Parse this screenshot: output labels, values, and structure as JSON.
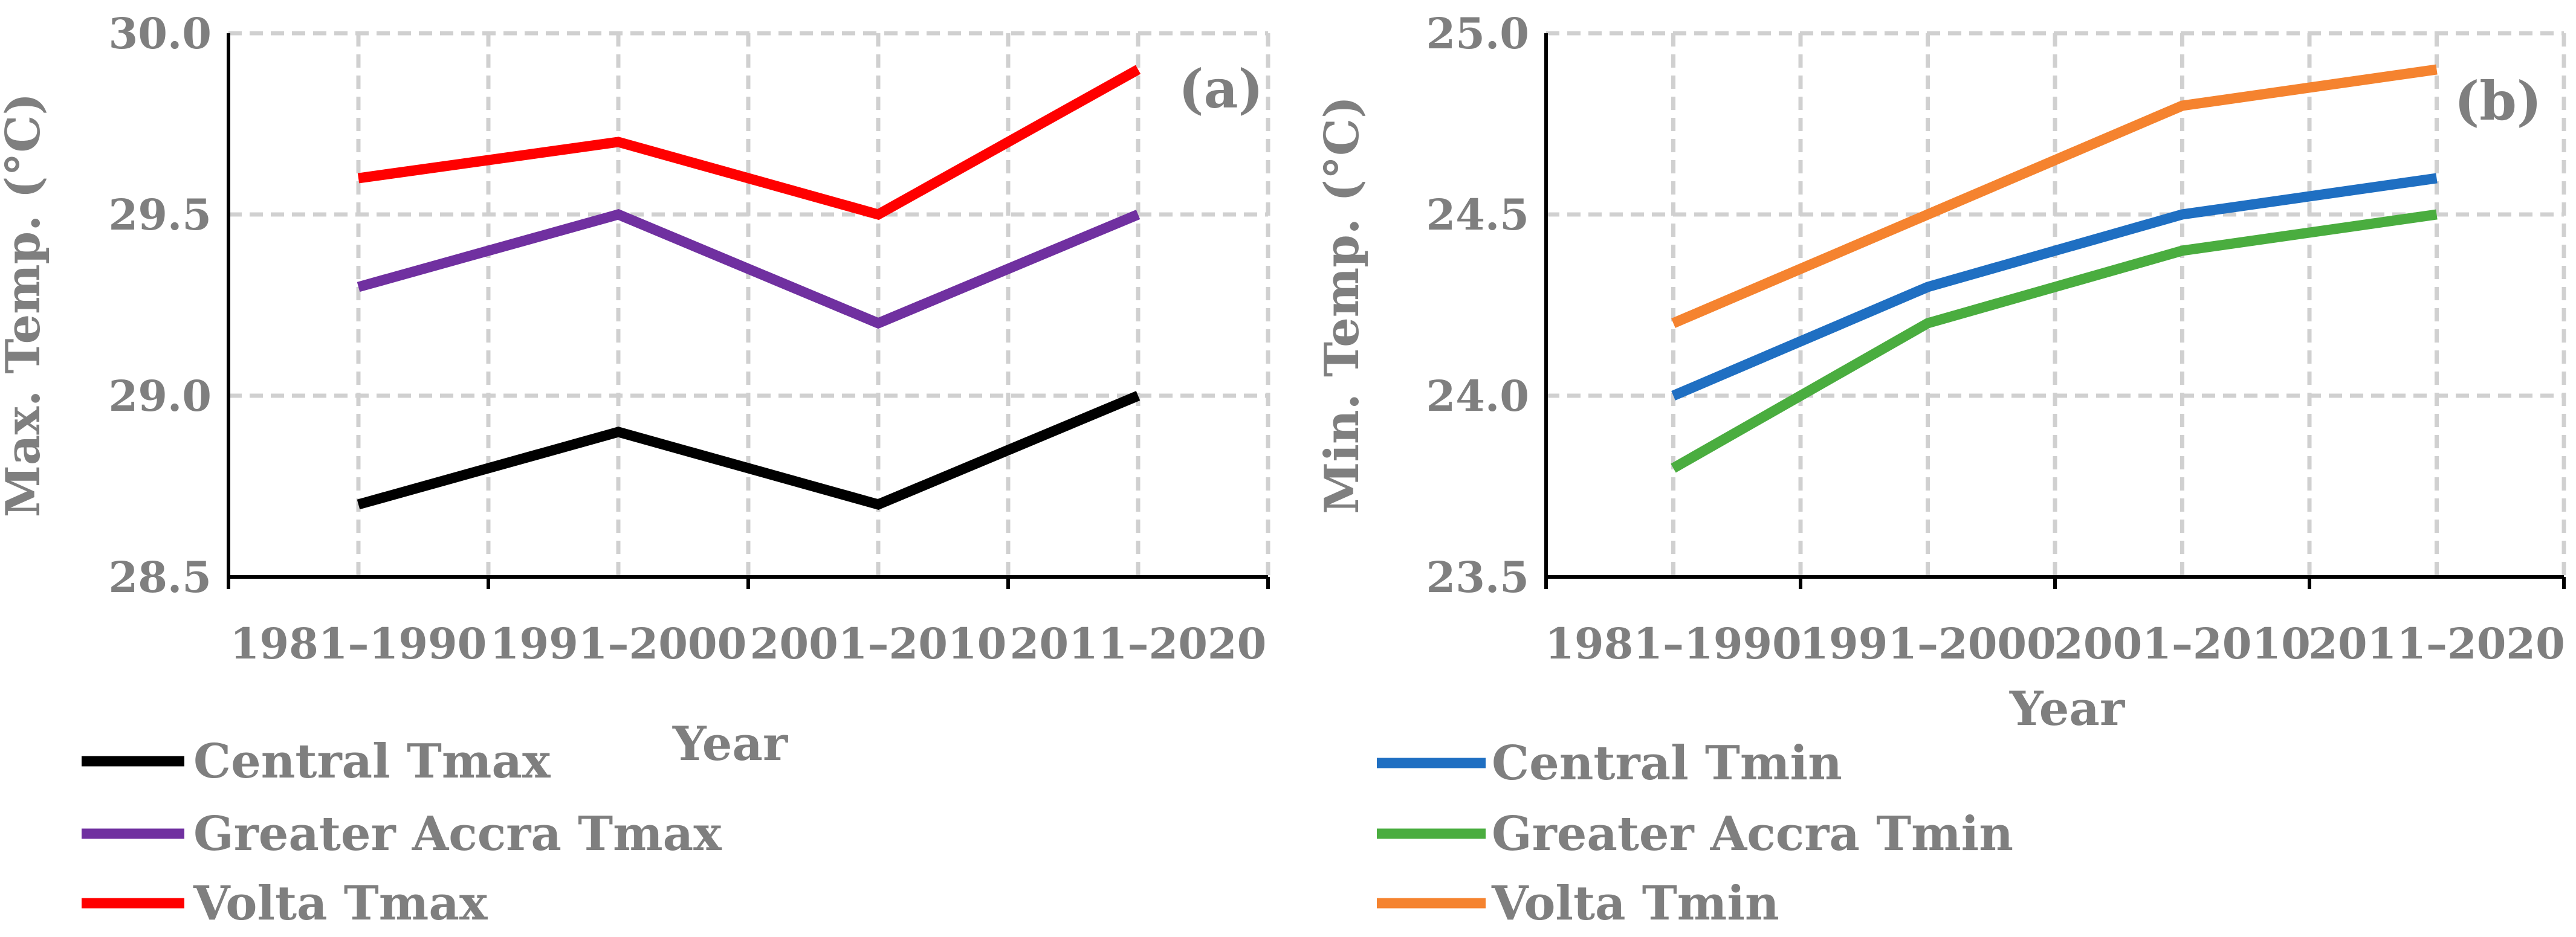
{
  "chart_data": [
    {
      "type": "line",
      "panel_label": "(a)",
      "categories": [
        "1981–1990",
        "1991–2000",
        "2001–2010",
        "2011–2020"
      ],
      "xlabel": "Year",
      "ylabel": "Max. Temp. (°C)",
      "ylim": [
        28.5,
        30.0
      ],
      "yticks": [
        "28.5",
        "29.0",
        "29.5",
        "30.0"
      ],
      "grid": true,
      "legend_position": "bottom",
      "series": [
        {
          "name": "Central Tmax",
          "color": "#000000",
          "values": [
            28.7,
            28.9,
            28.7,
            29.0
          ]
        },
        {
          "name": "Greater Accra Tmax",
          "color": "#7030a0",
          "values": [
            29.3,
            29.5,
            29.2,
            29.5
          ]
        },
        {
          "name": "Volta Tmax",
          "color": "#ff0000",
          "values": [
            29.6,
            29.7,
            29.5,
            29.9
          ]
        }
      ]
    },
    {
      "type": "line",
      "panel_label": "(b)",
      "categories": [
        "1981–1990",
        "1991–2000",
        "2001–2010",
        "2011–2020"
      ],
      "xlabel": "Year",
      "ylabel": "Min. Temp. (°C)",
      "ylim": [
        23.5,
        25.0
      ],
      "yticks": [
        "23.5",
        "24.0",
        "24.5",
        "25.0"
      ],
      "grid": true,
      "legend_position": "bottom",
      "series": [
        {
          "name": "Central Tmin",
          "color": "#1f6fc2",
          "values": [
            24.0,
            24.3,
            24.5,
            24.6
          ]
        },
        {
          "name": "Greater Accra Tmin",
          "color": "#4aad3f",
          "values": [
            23.8,
            24.2,
            24.4,
            24.5
          ]
        },
        {
          "name": "Volta Tmin",
          "color": "#f5832f",
          "values": [
            24.2,
            24.5,
            24.8,
            24.9
          ]
        }
      ]
    }
  ]
}
